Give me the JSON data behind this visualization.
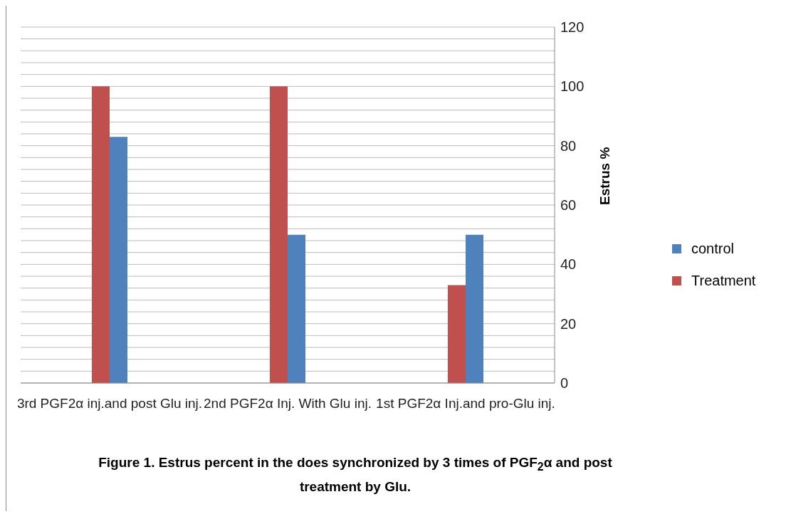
{
  "chart_data": {
    "type": "bar",
    "title": "Figure 1. Estrus percent in the does synchronized by 3 times  of PGF$_{2}$α  and post treatment by Glu.",
    "ylabel": "Estrus %",
    "categories": [
      "3rd PGF2α inj.and post Glu inj.",
      "2nd PGF2α Inj. With Glu inj.",
      "1st PGF2α Inj.and pro-Glu inj."
    ],
    "series": [
      {
        "name": "Treatment",
        "color": "#c0504d",
        "values": [
          100,
          100,
          33
        ]
      },
      {
        "name": "control",
        "color": "#4f81bd",
        "values": [
          83,
          50,
          50
        ]
      }
    ],
    "ylim": [
      0,
      120
    ],
    "yticks": [
      0,
      {
        "value": 4,
        "label": null
      },
      {
        "value": 8,
        "label": null
      },
      {
        "value": 12,
        "label": null
      },
      {
        "value": 16,
        "label": null
      },
      20,
      {
        "value": 24,
        "label": null
      },
      {
        "value": 28,
        "label": null
      },
      {
        "value": 32,
        "label": null
      },
      {
        "value": 36,
        "label": null
      },
      40,
      {
        "value": 44,
        "label": null
      },
      {
        "value": 48,
        "label": null
      },
      {
        "value": 52,
        "label": null
      },
      {
        "value": 56,
        "label": null
      },
      60,
      {
        "value": 64,
        "label": null
      },
      {
        "value": 68,
        "label": null
      },
      {
        "value": 72,
        "label": null
      },
      {
        "value": 76,
        "label": null
      },
      80,
      {
        "value": 84,
        "label": null
      },
      {
        "value": 88,
        "label": null
      },
      {
        "value": 92,
        "label": null
      },
      {
        "value": 96,
        "label": null
      },
      100,
      {
        "value": 104,
        "label": null
      },
      {
        "value": 108,
        "label": null
      },
      {
        "value": 112,
        "label": null
      },
      {
        "value": 116,
        "label": null
      },
      120
    ],
    "grid": "y",
    "legend": "right"
  }
}
